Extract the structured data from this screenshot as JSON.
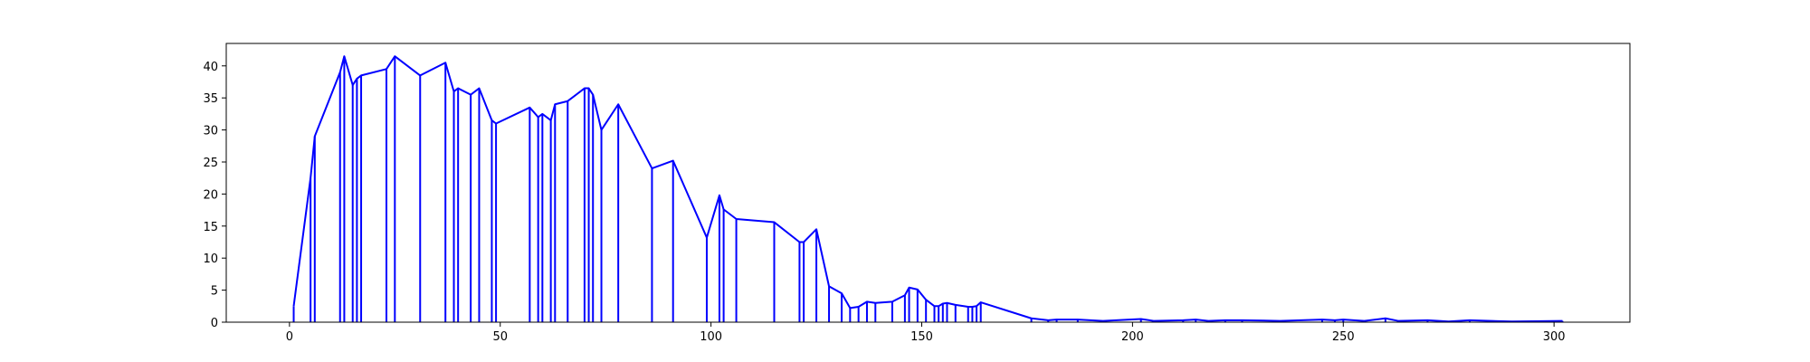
{
  "chart_data": {
    "type": "line",
    "title": "",
    "xlabel": "",
    "ylabel": "",
    "xlim": [
      -15,
      318
    ],
    "ylim": [
      0,
      43.5
    ],
    "grid": false,
    "x_ticks": [
      0,
      50,
      100,
      150,
      200,
      250,
      300
    ],
    "y_ticks": [
      0,
      5,
      10,
      15,
      20,
      25,
      30,
      35,
      40
    ],
    "x_tick_labels": [
      "0",
      "50",
      "100",
      "150",
      "200",
      "250",
      "300"
    ],
    "y_tick_labels": [
      "0",
      "5",
      "10",
      "15",
      "20",
      "25",
      "30",
      "35",
      "40"
    ],
    "series": [
      {
        "color": "#0000ff",
        "style": "line with vertical stems at each point",
        "points": [
          [
            1,
            2.5
          ],
          [
            5,
            22.5
          ],
          [
            6,
            29
          ],
          [
            12,
            39
          ],
          [
            13,
            41.5
          ],
          [
            15,
            37
          ],
          [
            16,
            38
          ],
          [
            17,
            38.5
          ],
          [
            23,
            39.5
          ],
          [
            25,
            41.5
          ],
          [
            31,
            38.5
          ],
          [
            37,
            40.5
          ],
          [
            39,
            36
          ],
          [
            40,
            36.5
          ],
          [
            43,
            35.5
          ],
          [
            45,
            36.5
          ],
          [
            48,
            31.5
          ],
          [
            49,
            31
          ],
          [
            57,
            33.5
          ],
          [
            59,
            32
          ],
          [
            60,
            32.5
          ],
          [
            62,
            31.5
          ],
          [
            63,
            34
          ],
          [
            66,
            34.5
          ],
          [
            70,
            36.5
          ],
          [
            71,
            36.5
          ],
          [
            72,
            35.5
          ],
          [
            74,
            30
          ],
          [
            78,
            34
          ],
          [
            86,
            24
          ],
          [
            91,
            25.2
          ],
          [
            99,
            13.2
          ],
          [
            102,
            19.8
          ],
          [
            103,
            17.6
          ],
          [
            106,
            16.1
          ],
          [
            115,
            15.6
          ],
          [
            121,
            12.5
          ],
          [
            122,
            12.5
          ],
          [
            125,
            14.5
          ],
          [
            128,
            5.6
          ],
          [
            131,
            4.5
          ],
          [
            133,
            2.2
          ],
          [
            135,
            2.4
          ],
          [
            137,
            3.2
          ],
          [
            139,
            3
          ],
          [
            143,
            3.2
          ],
          [
            146,
            4.2
          ],
          [
            147,
            5.4
          ],
          [
            149,
            5.1
          ],
          [
            151,
            3.5
          ],
          [
            153,
            2.5
          ],
          [
            154,
            2.5
          ],
          [
            155,
            2.9
          ],
          [
            156,
            3
          ],
          [
            158,
            2.7
          ],
          [
            161,
            2.4
          ],
          [
            162,
            2.4
          ],
          [
            163,
            2.5
          ],
          [
            164,
            3.1
          ],
          [
            176,
            0.6
          ],
          [
            180,
            0.3
          ],
          [
            182,
            0.4
          ],
          [
            187,
            0.4
          ],
          [
            193,
            0.2
          ],
          [
            202,
            0.5
          ],
          [
            205,
            0.2
          ],
          [
            212,
            0.3
          ],
          [
            215,
            0.4
          ],
          [
            218,
            0.2
          ],
          [
            222,
            0.3
          ],
          [
            226,
            0.3
          ],
          [
            235,
            0.2
          ],
          [
            245,
            0.4
          ],
          [
            248,
            0.3
          ],
          [
            250,
            0.4
          ],
          [
            255,
            0.2
          ],
          [
            260,
            0.6
          ],
          [
            263,
            0.2
          ],
          [
            270,
            0.3
          ],
          [
            275,
            0.1
          ],
          [
            280,
            0.3
          ],
          [
            290,
            0.1
          ],
          [
            302,
            0.2
          ]
        ]
      }
    ]
  }
}
